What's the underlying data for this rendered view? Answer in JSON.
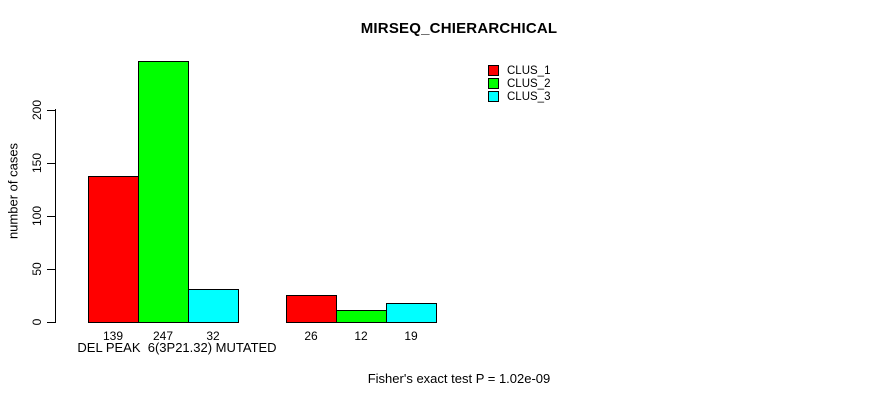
{
  "chart_data": {
    "type": "bar",
    "title": "MIRSEQ_CHIERARCHICAL",
    "ylabel": "number of cases",
    "xlabel": "",
    "ylim": [
      0,
      200
    ],
    "yticks": [
      0,
      50,
      100,
      150,
      200
    ],
    "grid": false,
    "categories": [
      "DEL PEAK  6(3P21.32) MUTATED",
      ""
    ],
    "series": [
      {
        "name": "CLUS_1",
        "color": "#ff0000",
        "values": [
          139,
          26
        ]
      },
      {
        "name": "CLUS_2",
        "color": "#00ff00",
        "values": [
          247,
          12
        ]
      },
      {
        "name": "CLUS_3",
        "color": "#00ffff",
        "values": [
          32,
          19
        ]
      }
    ],
    "bar_value_labels": [
      [
        "139",
        "247",
        "32"
      ],
      [
        "26",
        "12",
        "19"
      ]
    ],
    "legend": {
      "position": "top-right",
      "entries": [
        "CLUS_1",
        "CLUS_2",
        "CLUS_3"
      ]
    },
    "annotation": "Fisher's exact test P = 1.02e-09"
  }
}
